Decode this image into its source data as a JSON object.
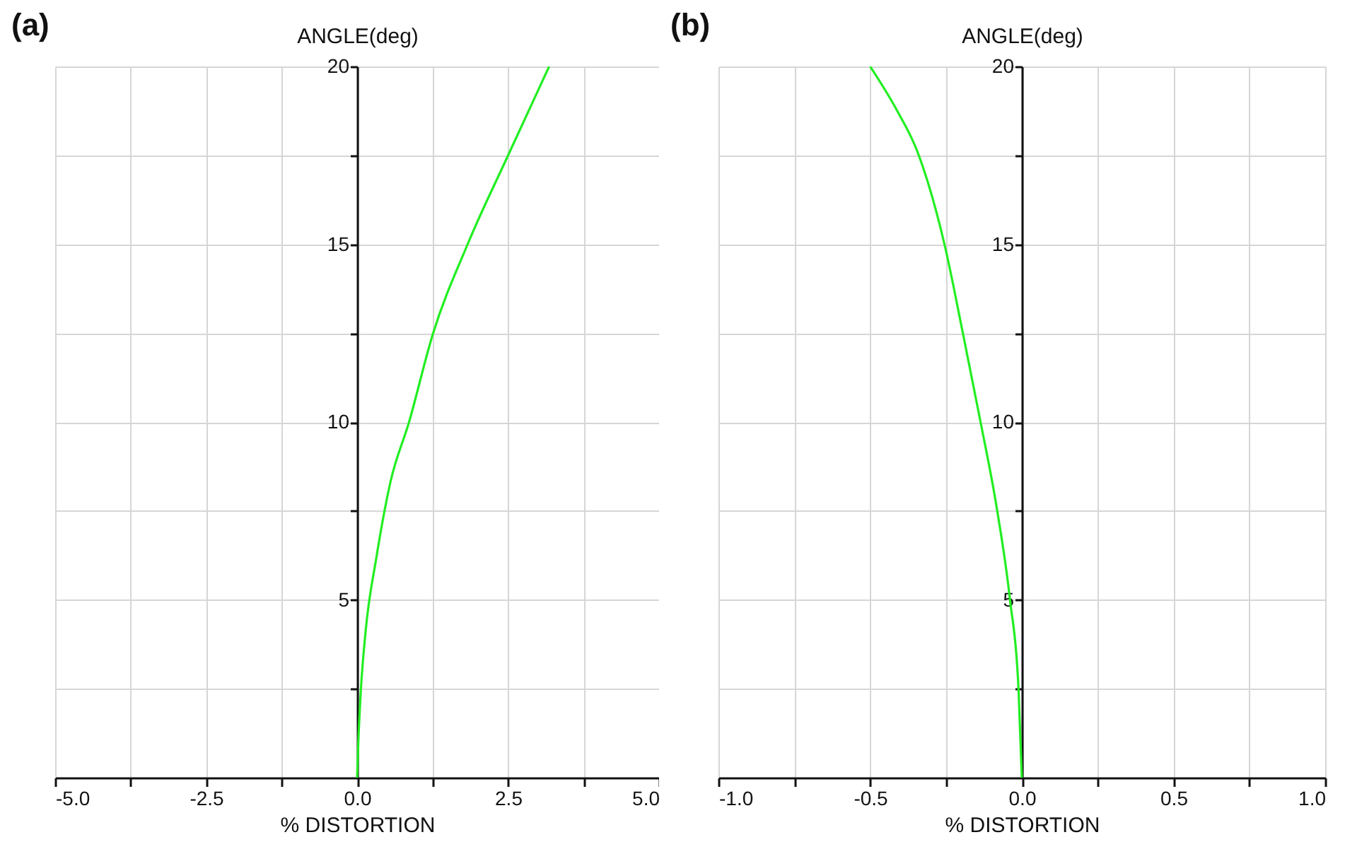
{
  "chart_data": [
    {
      "type": "line",
      "title": "(a)",
      "xlabel": "% DISTORTION",
      "ylabel": "ANGLE(deg)",
      "series": [
        {
          "color": "#22ee22",
          "x": [
            0,
            0.02,
            0.06,
            0.14,
            0.32,
            0.55,
            0.86,
            1.25,
            1.83,
            2.5,
            3.18
          ],
          "values": [
            0,
            1,
            2.4,
            4.1,
            6.2,
            8.3,
            10,
            12.45,
            15,
            17.5,
            20
          ]
        }
      ],
      "xlim": [
        -5,
        5
      ],
      "ylim": [
        0,
        20
      ],
      "xticks": [
        {
          "value": -5,
          "label": "-5.0"
        },
        {
          "value": -3.75,
          "label": null
        },
        {
          "value": -2.5,
          "label": "-2.5"
        },
        {
          "value": -1.25,
          "label": null
        },
        {
          "value": 0,
          "label": "0.0"
        },
        {
          "value": 1.25,
          "label": null
        },
        {
          "value": 2.5,
          "label": "2.5"
        },
        {
          "value": 3.75,
          "label": null
        },
        {
          "value": 5,
          "label": "5.0"
        }
      ],
      "yticks": [
        {
          "value": 2.5,
          "label": null
        },
        5,
        {
          "value": 7.5,
          "label": null
        },
        10,
        {
          "value": 12.5,
          "label": null
        },
        15,
        {
          "value": 17.5,
          "label": null
        },
        20
      ],
      "grid": true
    },
    {
      "type": "line",
      "title": "(b)",
      "xlabel": "% DISTORTION",
      "ylabel": "ANGLE(deg)",
      "series": [
        {
          "color": "#22ee22",
          "x": [
            0,
            -0.011,
            -0.039,
            -0.081,
            -0.136,
            -0.192,
            -0.255,
            -0.344,
            -0.414,
            -0.5
          ],
          "values": [
            0,
            2.5,
            5,
            7.5,
            10,
            12.4,
            15,
            17.6,
            18.8,
            20
          ]
        }
      ],
      "xlim": [
        -1,
        1
      ],
      "ylim": [
        0,
        20
      ],
      "xticks": [
        {
          "value": -1,
          "label": "-1.0"
        },
        {
          "value": -0.75,
          "label": null
        },
        {
          "value": -0.5,
          "label": "-0.5"
        },
        {
          "value": -0.25,
          "label": null
        },
        {
          "value": 0,
          "label": "0.0"
        },
        {
          "value": 0.25,
          "label": null
        },
        {
          "value": 0.5,
          "label": "0.5"
        },
        {
          "value": 0.75,
          "label": null
        },
        {
          "value": 1,
          "label": "1.0"
        }
      ],
      "yticks": [
        {
          "value": 2.5,
          "label": null
        },
        5,
        {
          "value": 7.5,
          "label": null
        },
        10,
        {
          "value": 12.5,
          "label": null
        },
        15,
        {
          "value": 17.5,
          "label": null
        },
        20
      ],
      "grid": true
    }
  ]
}
